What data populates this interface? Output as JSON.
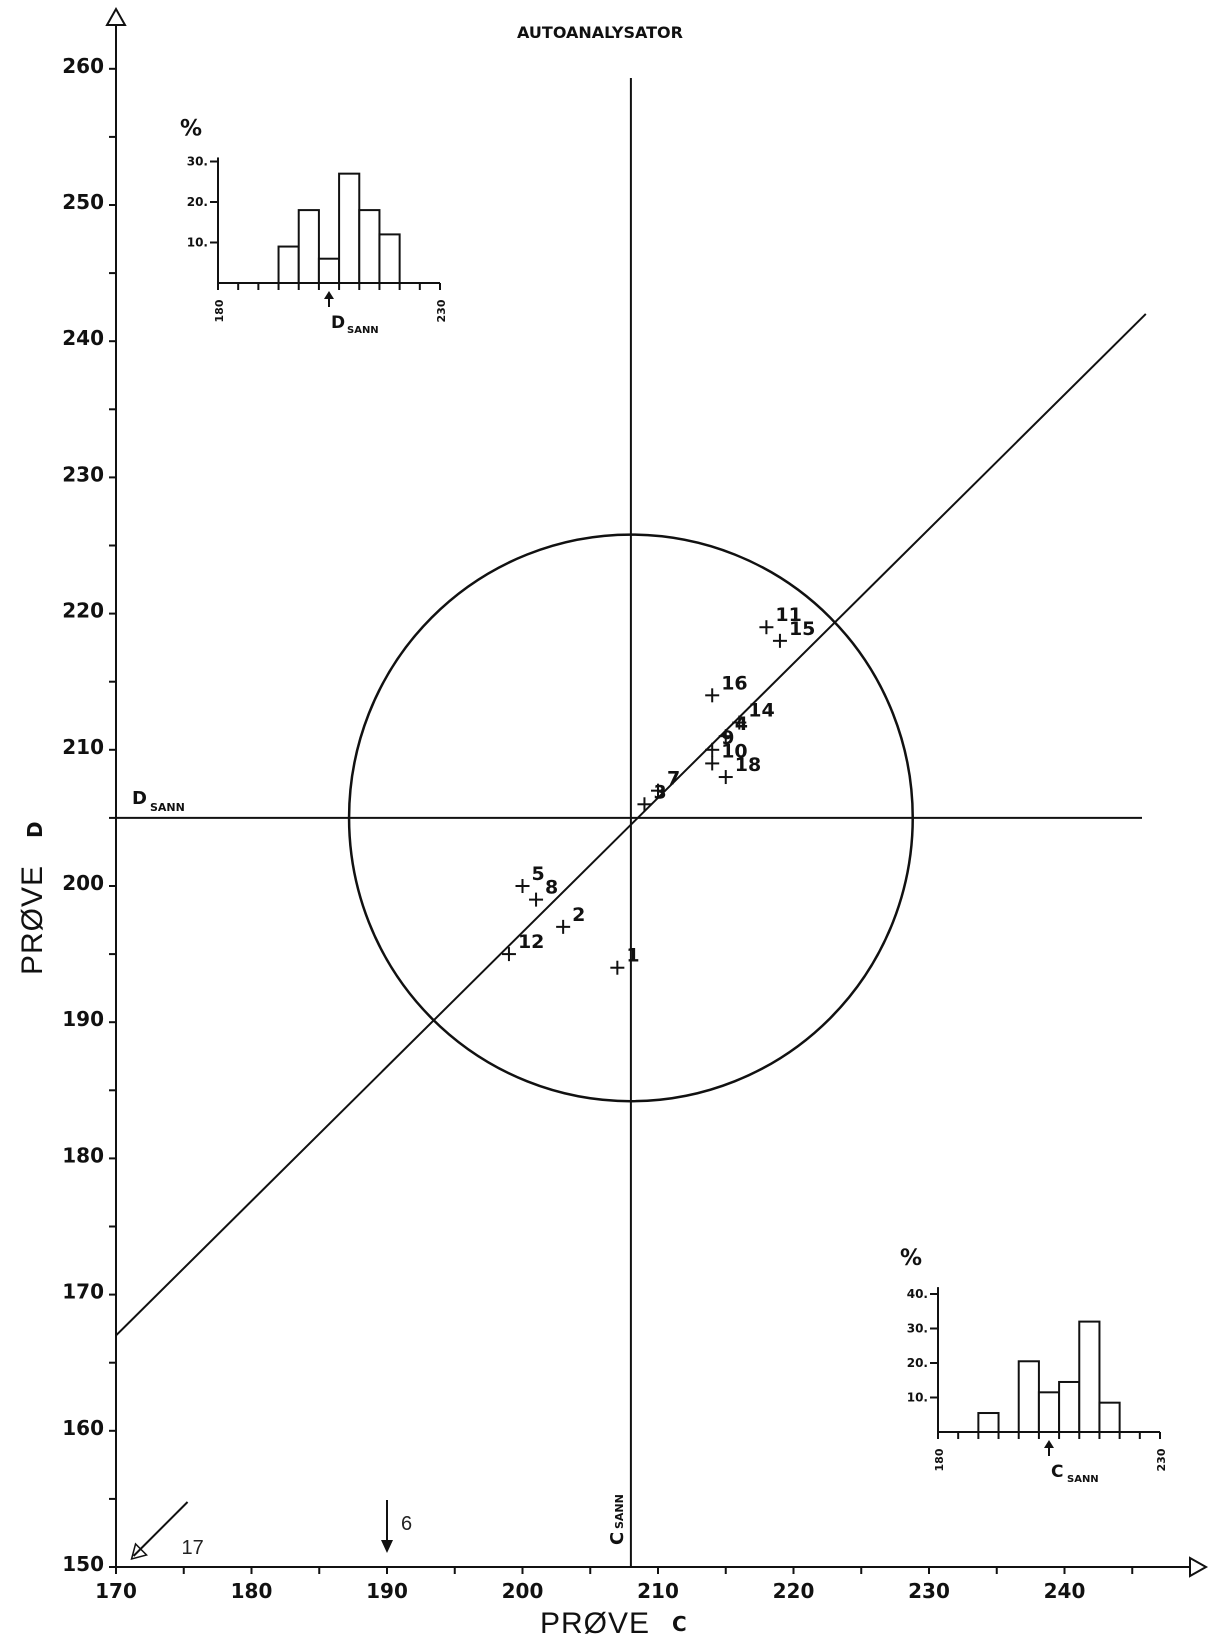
{
  "chart_data": {
    "type": "scatter",
    "subtitle": "AUTOANALYSATOR",
    "xlabel": "PRØVE",
    "xlabel_suffix": "C",
    "ylabel": "PRØVE",
    "ylabel_suffix": "D",
    "xlim": [
      170,
      246
    ],
    "ylim": [
      150,
      285
    ],
    "x_ticks": [
      170,
      180,
      190,
      200,
      210,
      220,
      230,
      240
    ],
    "x_tick_labels": [
      "170",
      "180",
      "190",
      "200",
      "210",
      "220",
      "230",
      "240"
    ],
    "y_ticks": [
      150,
      160,
      170,
      180,
      190,
      200,
      210,
      220,
      230,
      240,
      250,
      260
    ],
    "y_tick_labels": [
      "150",
      "160",
      "170",
      "180",
      "190",
      "200",
      "210",
      "220",
      "230",
      "240",
      "250",
      "260"
    ],
    "c_true": 208,
    "d_true": 205,
    "c_true_label": "C",
    "d_true_label": "D",
    "true_sub": "SANN",
    "circle_radius": 20.8,
    "diagonal": {
      "x1": 170,
      "y1": 167,
      "x2": 246,
      "y2": 242
    },
    "points": [
      {
        "label": "1",
        "x": 207,
        "y": 194
      },
      {
        "label": "2",
        "x": 203,
        "y": 197
      },
      {
        "label": "3",
        "x": 209,
        "y": 206
      },
      {
        "label": "4",
        "x": 215,
        "y": 211
      },
      {
        "label": "5",
        "x": 200,
        "y": 200
      },
      {
        "label": "7",
        "x": 210,
        "y": 207
      },
      {
        "label": "8",
        "x": 201,
        "y": 199
      },
      {
        "label": "9",
        "x": 214,
        "y": 210
      },
      {
        "label": "10",
        "x": 214,
        "y": 209
      },
      {
        "label": "11",
        "x": 218,
        "y": 219
      },
      {
        "label": "12",
        "x": 199,
        "y": 195
      },
      {
        "label": "14",
        "x": 216,
        "y": 212
      },
      {
        "label": "15",
        "x": 219,
        "y": 218
      },
      {
        "label": "16",
        "x": 214,
        "y": 214
      },
      {
        "label": "18",
        "x": 215,
        "y": 208
      }
    ],
    "offscale": [
      {
        "label": "6",
        "x": 190,
        "direction": "down"
      },
      {
        "label": "17",
        "x": 171,
        "direction": "down-left"
      }
    ],
    "inset_d": {
      "ylabel": "%",
      "y_ticks": [
        10,
        20,
        30
      ],
      "y_tick_labels": [
        "10.",
        "20.",
        "30."
      ],
      "x_tick_labels": [
        "180",
        "230"
      ],
      "marker_label": "D",
      "marker_sub": "SANN",
      "bars": [
        0,
        0,
        0,
        9,
        18,
        6,
        27,
        18,
        12,
        0,
        0
      ]
    },
    "inset_c": {
      "ylabel": "%",
      "y_ticks": [
        10,
        20,
        30,
        40
      ],
      "y_tick_labels": [
        "10.",
        "20.",
        "30.",
        "40."
      ],
      "x_tick_labels": [
        "180",
        "230"
      ],
      "marker_label": "C",
      "marker_sub": "SANN",
      "bars": [
        0,
        0,
        5.5,
        0,
        20.5,
        11.5,
        14.5,
        32,
        8.5,
        0,
        0
      ]
    }
  }
}
